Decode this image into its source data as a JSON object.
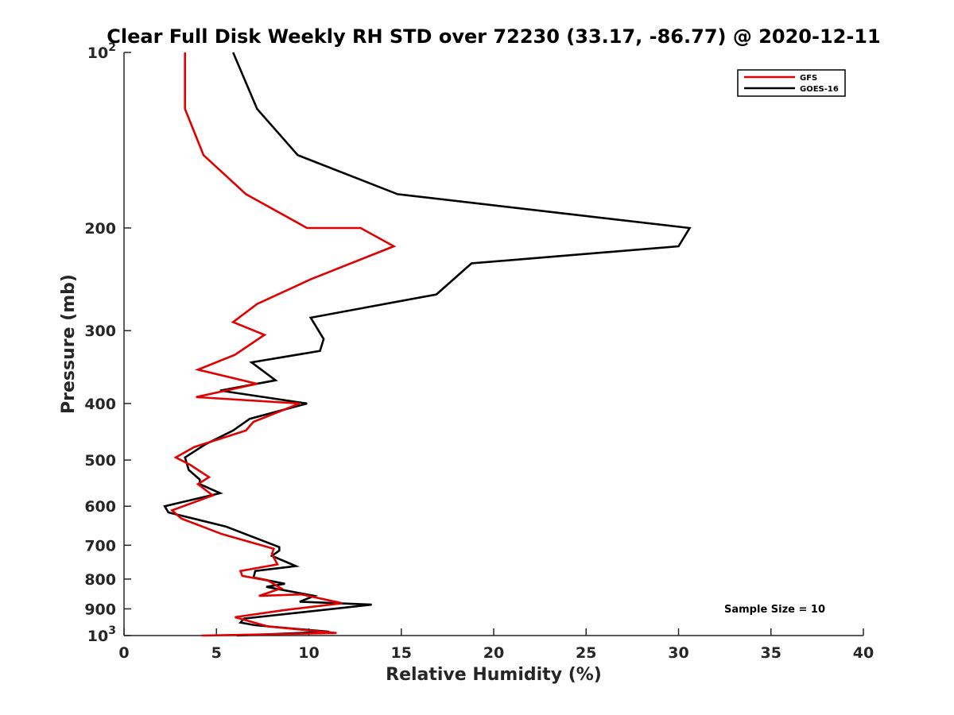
{
  "chart_data": {
    "type": "line",
    "title": "Clear Full Disk Weekly RH STD over 72230 (33.17, -86.77) @ 2020-12-11",
    "xlabel": "Relative Humidity (%)",
    "ylabel": "Pressure (mb)",
    "xlim": [
      0,
      40
    ],
    "ylim": [
      100,
      1000
    ],
    "yscale": "log",
    "y_reversed": true,
    "x_ticks": [
      {
        "value": 0,
        "label": "0"
      },
      {
        "value": 5,
        "label": "5"
      },
      {
        "value": 10,
        "label": "10"
      },
      {
        "value": 15,
        "label": "15"
      },
      {
        "value": 20,
        "label": "20"
      },
      {
        "value": 25,
        "label": "25"
      },
      {
        "value": 30,
        "label": "30"
      },
      {
        "value": 35,
        "label": "35"
      },
      {
        "value": 40,
        "label": "40"
      }
    ],
    "y_ticks": [
      {
        "value": 100,
        "label": "10",
        "exp": "2"
      },
      {
        "value": 200,
        "label": "200"
      },
      {
        "value": 300,
        "label": "300"
      },
      {
        "value": 400,
        "label": "400"
      },
      {
        "value": 500,
        "label": "500"
      },
      {
        "value": 600,
        "label": "600"
      },
      {
        "value": 700,
        "label": "700"
      },
      {
        "value": 800,
        "label": "800"
      },
      {
        "value": 900,
        "label": "900"
      },
      {
        "value": 1000,
        "label": "10",
        "exp": "3"
      }
    ],
    "grid": false,
    "legend_position": "top-right",
    "annotation": "Sample Size = 10",
    "series": [
      {
        "name": "GFS",
        "color": "#e00000",
        "points": [
          [
            3.3,
            100
          ],
          [
            3.3,
            125
          ],
          [
            4.3,
            150
          ],
          [
            6.6,
            175
          ],
          [
            9.9,
            200
          ],
          [
            12.8,
            200
          ],
          [
            14.6,
            215
          ],
          [
            10.1,
            245
          ],
          [
            7.2,
            270
          ],
          [
            5.9,
            290
          ],
          [
            7.6,
            305
          ],
          [
            6.0,
            330
          ],
          [
            4.0,
            350
          ],
          [
            7.2,
            370
          ],
          [
            3.9,
            390
          ],
          [
            9.5,
            400
          ],
          [
            7.0,
            430
          ],
          [
            6.6,
            445
          ],
          [
            3.8,
            475
          ],
          [
            2.8,
            495
          ],
          [
            3.6,
            510
          ],
          [
            4.6,
            535
          ],
          [
            4.0,
            550
          ],
          [
            4.8,
            575
          ],
          [
            2.6,
            610
          ],
          [
            3.1,
            630
          ],
          [
            5.3,
            670
          ],
          [
            8.1,
            710
          ],
          [
            8.0,
            725
          ],
          [
            8.3,
            755
          ],
          [
            6.3,
            775
          ],
          [
            6.4,
            790
          ],
          [
            7.8,
            805
          ],
          [
            8.5,
            830
          ],
          [
            7.3,
            855
          ],
          [
            9.6,
            850
          ],
          [
            11.8,
            880
          ],
          [
            8.6,
            905
          ],
          [
            6.0,
            930
          ],
          [
            7.8,
            965
          ],
          [
            11.5,
            990
          ],
          [
            4.2,
            1000
          ]
        ]
      },
      {
        "name": "GOES-16",
        "color": "#000000",
        "points": [
          [
            5.9,
            100
          ],
          [
            7.2,
            125
          ],
          [
            9.4,
            150
          ],
          [
            14.8,
            175
          ],
          [
            30.6,
            200
          ],
          [
            30.0,
            215
          ],
          [
            18.8,
            230
          ],
          [
            16.9,
            260
          ],
          [
            10.1,
            285
          ],
          [
            10.8,
            310
          ],
          [
            10.6,
            325
          ],
          [
            6.9,
            340
          ],
          [
            8.2,
            365
          ],
          [
            5.2,
            380
          ],
          [
            9.9,
            400
          ],
          [
            6.8,
            425
          ],
          [
            5.9,
            445
          ],
          [
            4.4,
            470
          ],
          [
            3.3,
            495
          ],
          [
            3.5,
            520
          ],
          [
            4.1,
            540
          ],
          [
            4.1,
            550
          ],
          [
            5.2,
            570
          ],
          [
            2.2,
            600
          ],
          [
            2.4,
            615
          ],
          [
            5.5,
            650
          ],
          [
            8.4,
            705
          ],
          [
            8.4,
            715
          ],
          [
            8.0,
            730
          ],
          [
            9.3,
            760
          ],
          [
            7.1,
            775
          ],
          [
            7.0,
            795
          ],
          [
            8.7,
            815
          ],
          [
            7.7,
            825
          ],
          [
            10.3,
            855
          ],
          [
            9.5,
            875
          ],
          [
            13.4,
            885
          ],
          [
            6.5,
            935
          ],
          [
            6.3,
            950
          ],
          [
            7.1,
            960
          ],
          [
            11.1,
            985
          ],
          [
            6.1,
            1000
          ]
        ]
      }
    ]
  }
}
